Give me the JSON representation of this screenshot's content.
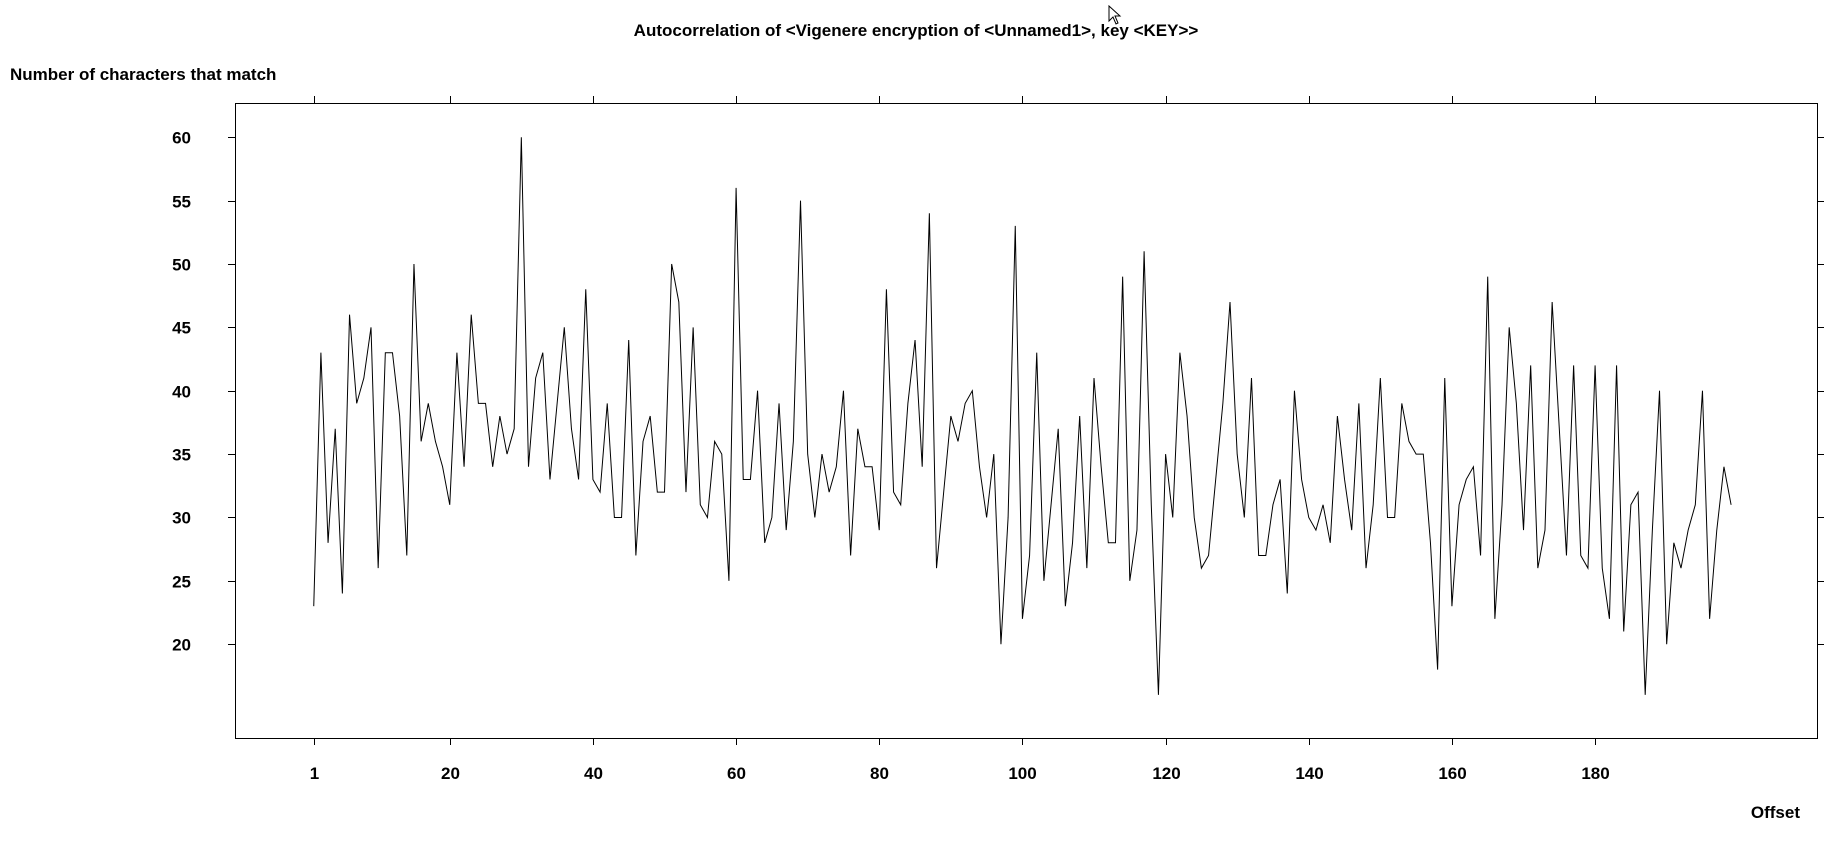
{
  "chart_data": {
    "type": "line",
    "title": "Autocorrelation of <Vigenere encryption of <Unnamed1>, key <KEY>>",
    "ylabel": "Number of characters that match",
    "xlabel": "Offset",
    "xlim": [
      -10,
      211
    ],
    "ylim": [
      12.6,
      62.7
    ],
    "xticks": [
      1,
      20,
      40,
      60,
      80,
      100,
      120,
      140,
      160,
      180
    ],
    "yticks": [
      20,
      25,
      30,
      35,
      40,
      45,
      50,
      55,
      60
    ],
    "grid": false,
    "legend": "none",
    "line_color": "#000000",
    "x_start": 1,
    "x_step": 1,
    "values": [
      23,
      43,
      28,
      37,
      24,
      46,
      39,
      41,
      45,
      26,
      43,
      43,
      38,
      27,
      50,
      36,
      39,
      36,
      34,
      31,
      43,
      34,
      46,
      39,
      39,
      34,
      38,
      35,
      37,
      60,
      34,
      41,
      43,
      33,
      39,
      45,
      37,
      33,
      48,
      33,
      32,
      39,
      30,
      30,
      44,
      27,
      36,
      38,
      32,
      32,
      50,
      47,
      32,
      45,
      31,
      30,
      36,
      35,
      25,
      56,
      33,
      33,
      40,
      28,
      30,
      39,
      29,
      36,
      55,
      35,
      30,
      35,
      32,
      34,
      40,
      27,
      37,
      34,
      34,
      29,
      48,
      32,
      31,
      39,
      44,
      34,
      54,
      26,
      32,
      38,
      36,
      39,
      40,
      34,
      30,
      35,
      20,
      30,
      53,
      22,
      27,
      43,
      25,
      31,
      37,
      23,
      28,
      38,
      26,
      41,
      34,
      28,
      28,
      49,
      25,
      29,
      51,
      31,
      16,
      35,
      30,
      43,
      38,
      30,
      26,
      27,
      33,
      39,
      47,
      35,
      30,
      41,
      27,
      27,
      31,
      33,
      24,
      40,
      33,
      30,
      29,
      31,
      28,
      38,
      33,
      29,
      39,
      26,
      31,
      41,
      30,
      30,
      39,
      36,
      35,
      35,
      28,
      18,
      41,
      23,
      31,
      33,
      34,
      27,
      49,
      22,
      31,
      45,
      39,
      29,
      42,
      26,
      29,
      47,
      37,
      27,
      42,
      27,
      26,
      42,
      26,
      22,
      42,
      21,
      31,
      32,
      16,
      29,
      40,
      20,
      28,
      26,
      29,
      31,
      40,
      22,
      29,
      34,
      31
    ]
  }
}
